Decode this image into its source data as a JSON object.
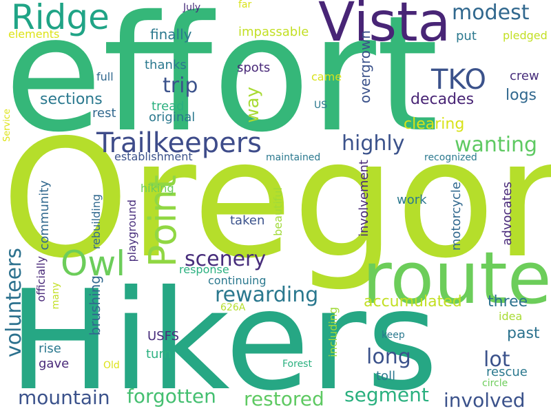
{
  "words": [
    {
      "text": "Oregon",
      "color": "#b5de2b"
    },
    {
      "text": "effort",
      "color": "#35b779"
    },
    {
      "text": "Hikers",
      "color": "#26a784"
    },
    {
      "text": "route",
      "color": "#6ccd5a"
    },
    {
      "text": "Vista",
      "color": "#482576"
    },
    {
      "text": "Point",
      "color": "#90d743"
    },
    {
      "text": "Ridge",
      "color": "#20a486"
    },
    {
      "text": "Owl",
      "color": "#6ccd5a"
    },
    {
      "text": "Trailkeepers",
      "color": "#3e4c8a"
    },
    {
      "text": "TKO",
      "color": "#3b528b"
    },
    {
      "text": "modest",
      "color": "#31688e"
    },
    {
      "text": "trip",
      "color": "#3b528b"
    },
    {
      "text": "highly",
      "color": "#3b528b"
    },
    {
      "text": "wanting",
      "color": "#5ec962"
    },
    {
      "text": "scenery",
      "color": "#472d7b"
    },
    {
      "text": "rewarding",
      "color": "#2a788e"
    },
    {
      "text": "volunteers",
      "color": "#2c718e"
    },
    {
      "text": "long",
      "color": "#3b528b"
    },
    {
      "text": "lot",
      "color": "#3b528b"
    },
    {
      "text": "segment",
      "color": "#2ab07f"
    },
    {
      "text": "restored",
      "color": "#5ec962"
    },
    {
      "text": "forgotten",
      "color": "#44bf70"
    },
    {
      "text": "mountain",
      "color": "#3b528b"
    },
    {
      "text": "involved",
      "color": "#3b528b"
    },
    {
      "text": "accumulated",
      "color": "#c2df23"
    },
    {
      "text": "sections",
      "color": "#2a788e"
    },
    {
      "text": "decades",
      "color": "#482475"
    },
    {
      "text": "logs",
      "color": "#31688e"
    },
    {
      "text": "way",
      "color": "#a8db34"
    },
    {
      "text": "overgrown",
      "color": "#3b528b"
    },
    {
      "text": "clearing",
      "color": "#d8e219"
    },
    {
      "text": "three",
      "color": "#2c728e"
    },
    {
      "text": "past",
      "color": "#2c728e"
    },
    {
      "text": "finally",
      "color": "#2a788e"
    },
    {
      "text": "impassable",
      "color": "#c2df23"
    },
    {
      "text": "put",
      "color": "#2a788e"
    },
    {
      "text": "pledged",
      "color": "#c2df23"
    },
    {
      "text": "elements",
      "color": "#dde318"
    },
    {
      "text": "July",
      "color": "#472d7b"
    },
    {
      "text": "far",
      "color": "#d8e219"
    },
    {
      "text": "thanks",
      "color": "#2a788e"
    },
    {
      "text": "spots",
      "color": "#482878"
    },
    {
      "text": "came",
      "color": "#d8e219"
    },
    {
      "text": "crew",
      "color": "#472d7b"
    },
    {
      "text": "full",
      "color": "#31688e"
    },
    {
      "text": "rest",
      "color": "#31688e"
    },
    {
      "text": "tread",
      "color": "#2ab07f"
    },
    {
      "text": "original",
      "color": "#2a788e"
    },
    {
      "text": "US",
      "color": "#2a788e"
    },
    {
      "text": "Service",
      "color": "#dde318"
    },
    {
      "text": "establishment",
      "color": "#3b528b"
    },
    {
      "text": "maintained",
      "color": "#2a788e"
    },
    {
      "text": "recognized",
      "color": "#2a788e"
    },
    {
      "text": "hiking",
      "color": "#6ccd5a"
    },
    {
      "text": "community",
      "color": "#31688e"
    },
    {
      "text": "rebuilding",
      "color": "#31688e"
    },
    {
      "text": "brushing",
      "color": "#31688e"
    },
    {
      "text": "playground",
      "color": "#472d7b"
    },
    {
      "text": "taken",
      "color": "#3b528b"
    },
    {
      "text": "beautiful",
      "color": "#a0da39"
    },
    {
      "text": "work",
      "color": "#2a788e"
    },
    {
      "text": "involvement",
      "color": "#482878"
    },
    {
      "text": "motorcycle",
      "color": "#31688e"
    },
    {
      "text": "advocates",
      "color": "#482878"
    },
    {
      "text": "response",
      "color": "#2ab07f"
    },
    {
      "text": "continuing",
      "color": "#2a788e"
    },
    {
      "text": "officially",
      "color": "#482878"
    },
    {
      "text": "many",
      "color": "#c2df23"
    },
    {
      "text": "626A",
      "color": "#b5de2b"
    },
    {
      "text": "USFS",
      "color": "#472d7b"
    },
    {
      "text": "turn",
      "color": "#2ab07f"
    },
    {
      "text": "idea",
      "color": "#a8db34"
    },
    {
      "text": "rise",
      "color": "#2a788e"
    },
    {
      "text": "gave",
      "color": "#482878"
    },
    {
      "text": "Old",
      "color": "#dde318"
    },
    {
      "text": "including",
      "color": "#a0da39"
    },
    {
      "text": "keep",
      "color": "#2a788e"
    },
    {
      "text": "Forest",
      "color": "#2ab07f"
    },
    {
      "text": "toll",
      "color": "#2a788e"
    },
    {
      "text": "rescue",
      "color": "#2a788e"
    },
    {
      "text": "circle",
      "color": "#6ccd5a"
    }
  ]
}
